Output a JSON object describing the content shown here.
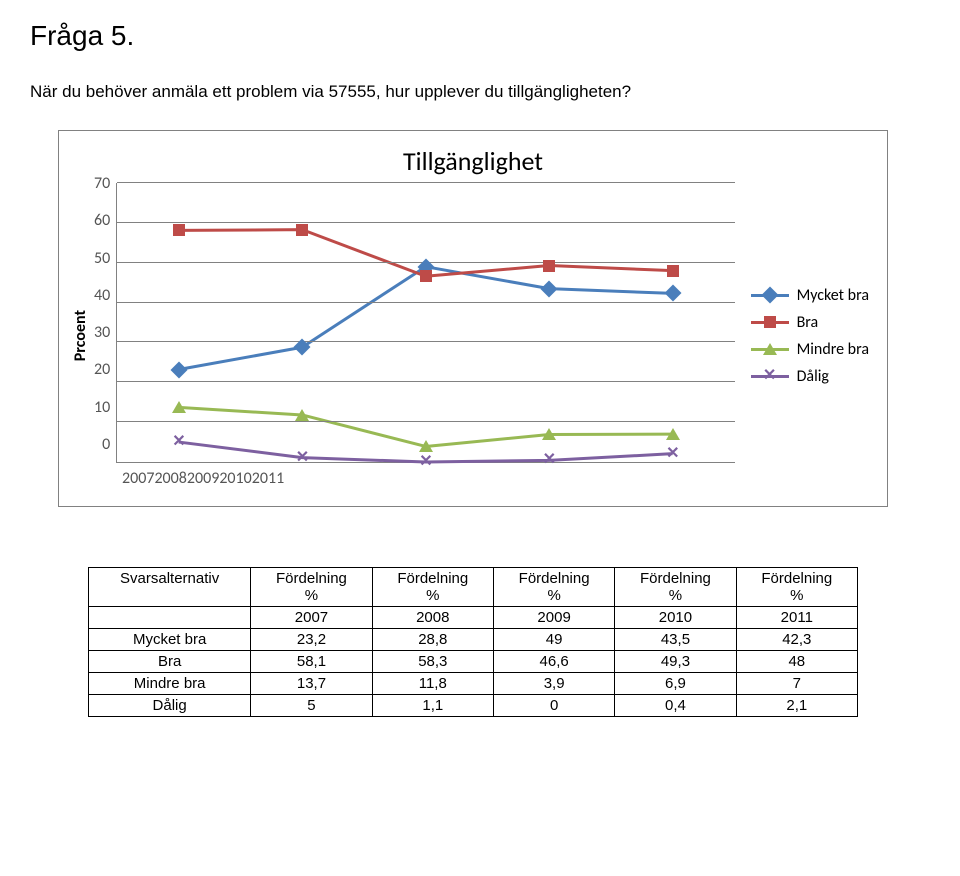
{
  "page": {
    "title": "Fråga 5.",
    "subtitle": "När du behöver anmäla ett problem via 57555, hur upplever du tillgängligheten?"
  },
  "chart": {
    "type": "line",
    "title": "Tillgänglighet",
    "y_axis_label": "Prcoent",
    "ylim": [
      0,
      70
    ],
    "ytick_step": 10,
    "yticks": [
      70,
      60,
      50,
      40,
      30,
      20,
      10,
      0
    ],
    "categories": [
      "2007",
      "2008",
      "2009",
      "2010",
      "2011"
    ],
    "grid_color": "#818181",
    "background_color": "#ffffff",
    "tick_font_color": "#555555",
    "tick_fontsize": 16,
    "title_fontsize": 26,
    "line_width": 3,
    "marker_size": 12,
    "series": [
      {
        "name": "Mycket bra",
        "color": "#4a7ebb",
        "marker": "diamond",
        "values": [
          23.2,
          28.8,
          49,
          43.5,
          42.3
        ]
      },
      {
        "name": "Bra",
        "color": "#be4b48",
        "marker": "square",
        "values": [
          58.1,
          58.3,
          46.6,
          49.3,
          48
        ]
      },
      {
        "name": "Mindre bra",
        "color": "#98b954",
        "marker": "triangle",
        "values": [
          13.7,
          11.8,
          3.9,
          6.9,
          7
        ]
      },
      {
        "name": "Dålig",
        "color": "#7d60a0",
        "marker": "x",
        "values": [
          5,
          1.1,
          0,
          0.4,
          2.1
        ]
      }
    ]
  },
  "table": {
    "header_label": "Svarsalternativ",
    "col_label": "Fördelning",
    "col_unit": "%",
    "years": [
      "2007",
      "2008",
      "2009",
      "2010",
      "2011"
    ],
    "rows": [
      {
        "label": "Mycket bra",
        "cells": [
          "23,2",
          "28,8",
          "49",
          "43,5",
          "42,3"
        ]
      },
      {
        "label": "Bra",
        "cells": [
          "58,1",
          "58,3",
          "46,6",
          "49,3",
          "48"
        ]
      },
      {
        "label": "Mindre bra",
        "cells": [
          "13,7",
          "11,8",
          "3,9",
          "6,9",
          "7"
        ]
      },
      {
        "label": "Dålig",
        "cells": [
          "5",
          "1,1",
          "0",
          "0,4",
          "2,1"
        ]
      }
    ]
  }
}
